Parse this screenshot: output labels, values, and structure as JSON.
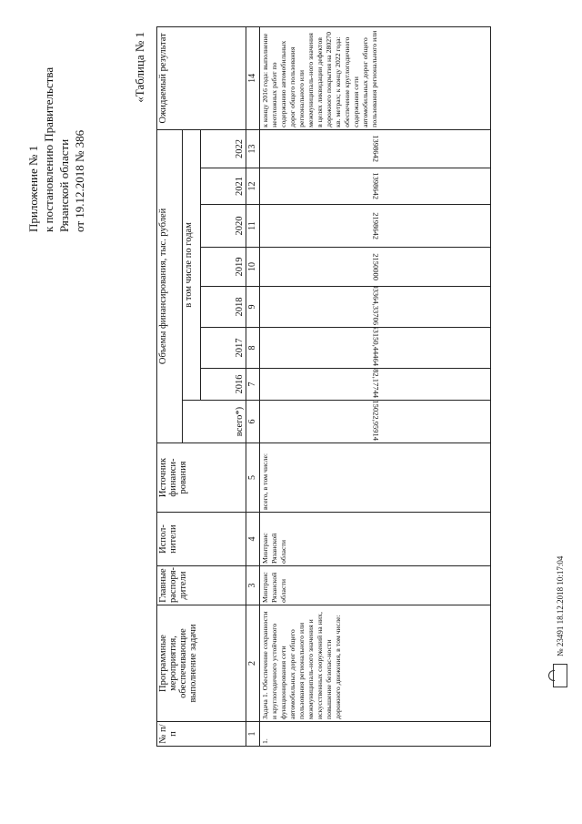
{
  "header": {
    "lines": [
      "Приложение № 1",
      "к постановлению Правительства",
      "Рязанской области",
      "от 19.12.2018 № 386"
    ],
    "table_label": "«Таблица № 1"
  },
  "table": {
    "headers": {
      "c1": "№ п/п",
      "c2": "Программные мероприятия, обеспечивающие выполнение задачи",
      "c3": "Главные распоря-дители",
      "c4": "Испол-нители",
      "c5": "Источник финанси-рования",
      "funding": "Объемы финансирования, тыс. рублей",
      "total": "всего*)",
      "by_years": "в том числе по годам",
      "years": [
        "2016",
        "2017",
        "2018",
        "2019",
        "2020",
        "2021",
        "2022"
      ],
      "c14": "Ожидаемый результат"
    },
    "col_numbers": [
      "1",
      "2",
      "3",
      "4",
      "5",
      "6",
      "7",
      "8",
      "9",
      "10",
      "11",
      "12",
      "13",
      "14"
    ],
    "row": {
      "no": "1.",
      "activity": "Задача 1. Обеспечение сохранности и круглогодичного устойчивого функционирования сети автомобильных дорог общего пользования регионального или межмуниципаль-ного значения и искусственных сооружений на них, повышение безопас-ности дорожного движения, в том числе:",
      "manager": "Минтранс Рязанской области",
      "executor": "Минтранс Рязанской области",
      "source": "всего, в том числе:",
      "total": "14015022,95914",
      "values": [
        "1912582,17744",
        "2253150,44464",
        "2703364,33706",
        "2150000",
        "2198642",
        "1398642",
        "1398642"
      ],
      "result": "к концу 2016 года: выполнение неотложных работ по содержанию автомобильных дорог общего пользования регионального или межмуниципаль-ного значения в целях ликвидации дефектов дорожного покрытия на 280270 кв. метрах; к концу 2022 года: обеспечение круглогодичного содержания сети автомобильных дорог общего пользования регионального или"
    }
  },
  "footer": {
    "registration": "№ 23491  18.12.2018 10:17:04"
  }
}
